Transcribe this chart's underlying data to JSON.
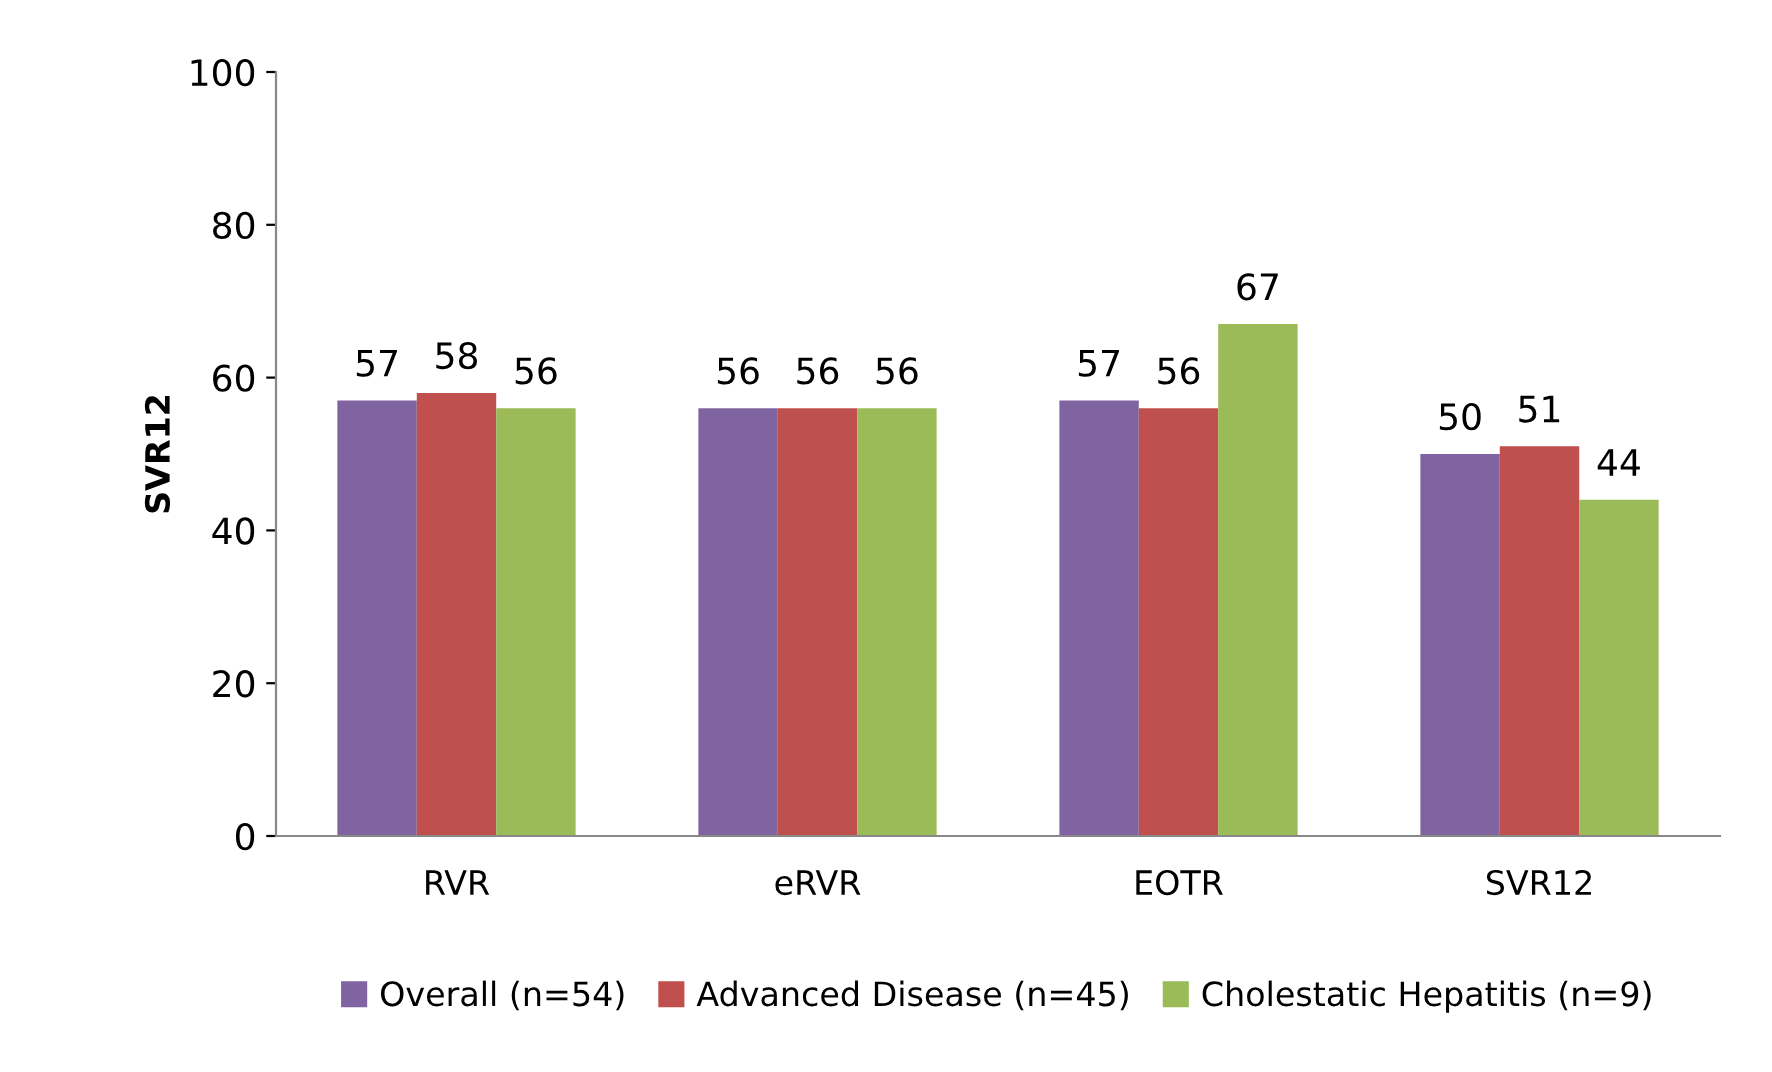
{
  "chart_data": {
    "type": "bar",
    "ylabel": "SVR12",
    "categories": [
      "RVR",
      "eRVR",
      "EOTR",
      "SVR12"
    ],
    "series": [
      {
        "name": "Overall (n=54)",
        "color": "#8064a2",
        "values": [
          57,
          56,
          57,
          50
        ]
      },
      {
        "name": "Advanced Disease (n=45)",
        "color": "#c0504d",
        "values": [
          58,
          56,
          56,
          51
        ]
      },
      {
        "name": "Cholestatic Hepatitis (n=9)",
        "color": "#9bbb59",
        "values": [
          56,
          56,
          67,
          44
        ]
      }
    ],
    "ylim": [
      0,
      100
    ],
    "yticks": [
      0,
      20,
      40,
      60,
      80,
      100
    ],
    "grid": false,
    "legend": "bottom",
    "data_labels": true
  }
}
